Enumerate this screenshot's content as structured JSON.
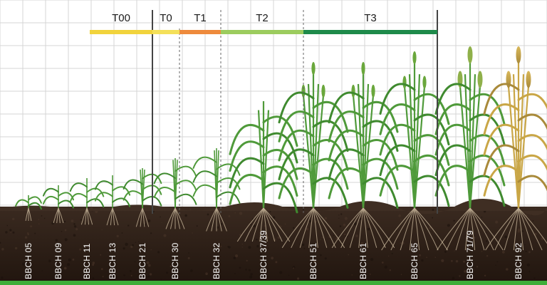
{
  "colors": {
    "background": "#ffffff",
    "grid": "#d6d6d6",
    "soil_top": "#3a2a20",
    "soil_bottom": "#22160f",
    "ground_strip": "#3fae3a",
    "marker_solid": "#444444",
    "marker_dashed": "#666666"
  },
  "treatment_stages": [
    {
      "label": "T00",
      "color": "#f1d33c",
      "span_stages": [
        "BBCH 05",
        "BBCH 21"
      ]
    },
    {
      "label": "T0",
      "color": "#f4e05a",
      "span_stages": [
        "BBCH 21",
        "BBCH 30"
      ]
    },
    {
      "label": "T1",
      "color": "#ee8a3c",
      "span_stages": [
        "BBCH 30",
        "BBCH 32"
      ]
    },
    {
      "label": "T2",
      "color": "#9ccc5e",
      "span_stages": [
        "BBCH 32",
        "BBCH 51"
      ]
    },
    {
      "label": "T3",
      "color": "#1e8a4a",
      "span_stages": [
        "BBCH 51",
        "BBCH 65"
      ]
    }
  ],
  "growth_stages": [
    {
      "label": "BBCH 05"
    },
    {
      "label": "BBCH 09"
    },
    {
      "label": "BBCH 11"
    },
    {
      "label": "BBCH 13"
    },
    {
      "label": "BBCH 21"
    },
    {
      "label": "BBCH 30"
    },
    {
      "label": "BBCH 32"
    },
    {
      "label": "BBCH 37/39"
    },
    {
      "label": "BBCH 51"
    },
    {
      "label": "BBCH 61"
    },
    {
      "label": "BBCH 65"
    },
    {
      "label": "BBCH 71/79"
    },
    {
      "label": "BBCH 92"
    }
  ]
}
